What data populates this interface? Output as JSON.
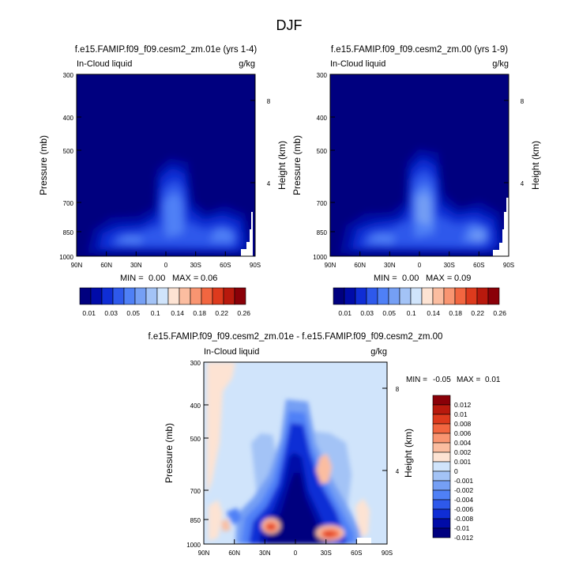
{
  "figure": {
    "title": "DJF"
  },
  "chart_data": [
    {
      "type": "heatmap",
      "title": "f.e15.FAMIP.f09_f09.cesm2_zm.01e (yrs 1-4)",
      "left_label": "In-Cloud liquid",
      "right_label": "g/kg",
      "ylabel": "Pressure (mb)",
      "ylabel_right": "Height (km)",
      "x_ticks": [
        "90N",
        "60N",
        "30N",
        "0",
        "30S",
        "60S",
        "90S"
      ],
      "y_ticks": [
        "300",
        "400",
        "500",
        "700",
        "850",
        "1000"
      ],
      "y_ticks_right": [
        "8",
        "4"
      ],
      "ylim": [
        300,
        1000
      ],
      "stats": {
        "min_label": "MIN =",
        "min": "0.00",
        "max_label": "MAX =",
        "max": "0.06"
      },
      "colorbar_labels": [
        "0.01",
        "0.03",
        "0.05",
        "0.1",
        "0.14",
        "0.18",
        "0.22",
        "0.26"
      ],
      "features": [
        {
          "lat": 0,
          "p": 700,
          "value": 0.055
        },
        {
          "lat": -30,
          "p": 870,
          "value": 0.05
        },
        {
          "lat": 45,
          "p": 875,
          "value": 0.03
        }
      ]
    },
    {
      "type": "heatmap",
      "title": "f.e15.FAMIP.f09_f09.cesm2_zm.00 (yrs 1-9)",
      "left_label": "In-Cloud liquid",
      "right_label": "g/kg",
      "ylabel": "Pressure (mb)",
      "ylabel_right": "Height (km)",
      "x_ticks": [
        "90N",
        "60N",
        "30N",
        "0",
        "30S",
        "60S",
        "90S"
      ],
      "y_ticks": [
        "300",
        "400",
        "500",
        "700",
        "850",
        "1000"
      ],
      "y_ticks_right": [
        "8",
        "4"
      ],
      "ylim": [
        300,
        1000
      ],
      "stats": {
        "min_label": "MIN =",
        "min": "0.00",
        "max_label": "MAX =",
        "max": "0.09"
      },
      "colorbar_labels": [
        "0.01",
        "0.03",
        "0.05",
        "0.1",
        "0.14",
        "0.18",
        "0.22",
        "0.26"
      ],
      "features": [
        {
          "lat": 0,
          "p": 700,
          "value": 0.09
        },
        {
          "lat": -30,
          "p": 870,
          "value": 0.07
        },
        {
          "lat": 45,
          "p": 875,
          "value": 0.04
        }
      ]
    },
    {
      "type": "heatmap",
      "title": "f.e15.FAMIP.f09_f09.cesm2_zm.01e - f.e15.FAMIP.f09_f09.cesm2_zm.00",
      "left_label": "In-Cloud liquid",
      "right_label": "g/kg",
      "ylabel": "Pressure (mb)",
      "ylabel_right": "Height (km)",
      "x_ticks": [
        "90N",
        "60N",
        "30N",
        "0",
        "30S",
        "60S",
        "90S"
      ],
      "y_ticks": [
        "300",
        "400",
        "500",
        "700",
        "850",
        "1000"
      ],
      "y_ticks_right": [
        "8",
        "4"
      ],
      "ylim": [
        300,
        1000
      ],
      "stats": {
        "min_label": "MIN =",
        "min": "-0.05",
        "max_label": "MAX =",
        "max": "0.01"
      },
      "colorbar_labels": [
        "0.012",
        "0.01",
        "0.008",
        "0.006",
        "0.004",
        "0.002",
        "0.001",
        "0",
        "-0.001",
        "-0.002",
        "-0.004",
        "-0.006",
        "-0.008",
        "-0.01",
        "-0.012"
      ],
      "features": [
        {
          "lat": 0,
          "p": 750,
          "value": -0.05
        },
        {
          "lat": 25,
          "p": 880,
          "value": 0.012
        },
        {
          "lat": -30,
          "p": 890,
          "value": 0.01
        },
        {
          "lat": -28,
          "p": 600,
          "value": 0.006
        }
      ]
    }
  ],
  "colors": {
    "seq": [
      "#00007f",
      "#000ba8",
      "#0f2dd5",
      "#2e59eb",
      "#4f80f6",
      "#759ff4",
      "#a3c3f6",
      "#d0e4fb",
      "#fde3d3",
      "#fbbda0",
      "#f99571",
      "#f26640",
      "#dd3a1d",
      "#b8190d",
      "#8a0008"
    ],
    "diff": [
      "#8a0008",
      "#b8190d",
      "#dd3a1d",
      "#f26640",
      "#f99571",
      "#fbbda0",
      "#fde3d3",
      "#d0e4fb",
      "#a3c3f6",
      "#759ff4",
      "#4f80f6",
      "#2e59eb",
      "#0f2dd5",
      "#000ba8",
      "#00007f"
    ]
  }
}
